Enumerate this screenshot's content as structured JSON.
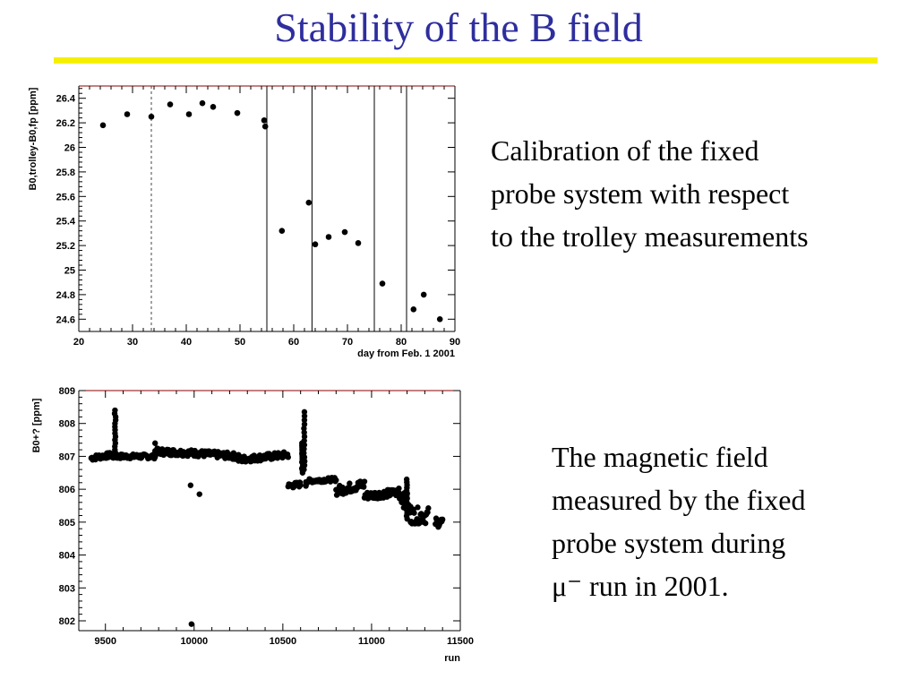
{
  "slide": {
    "title": "Stability of the B field",
    "caption1_lines": [
      "Calibration of the fixed",
      "probe system with respect",
      "to the trolley measurements"
    ],
    "caption2_lines": [
      "The magnetic field",
      "measured by the fixed",
      "probe system during",
      "μ⁻ run in 2001."
    ]
  },
  "colors": {
    "title": "#2e2e9e",
    "rule": "#f5f000",
    "frame_top": "#8b0000"
  },
  "chart_data": [
    {
      "type": "scatter",
      "xlabel": "day from Feb. 1 2001",
      "ylabel": "B0,trolley-B0,fp [ppm]",
      "xlim": [
        20,
        90
      ],
      "ylim": [
        24.5,
        26.5
      ],
      "xticks": [
        20,
        30,
        40,
        50,
        60,
        70,
        80,
        90
      ],
      "yticks": [
        24.6,
        24.8,
        25,
        25.2,
        25.4,
        25.6,
        25.8,
        26,
        26.2,
        26.4
      ],
      "vlines_solid": [
        55,
        63.4,
        75,
        81
      ],
      "vlines_dashed": [
        33.5
      ],
      "points": [
        [
          24.5,
          26.18
        ],
        [
          29,
          26.27
        ],
        [
          33.5,
          26.25
        ],
        [
          37,
          26.35
        ],
        [
          40.5,
          26.27
        ],
        [
          43,
          26.36
        ],
        [
          45,
          26.33
        ],
        [
          49.5,
          26.28
        ],
        [
          54.5,
          26.22
        ],
        [
          54.7,
          26.17
        ],
        [
          57.8,
          25.32
        ],
        [
          62.8,
          25.55
        ],
        [
          64,
          25.21
        ],
        [
          66.5,
          25.27
        ],
        [
          69.5,
          25.31
        ],
        [
          72,
          25.22
        ],
        [
          76.5,
          24.89
        ],
        [
          82.3,
          24.68
        ],
        [
          84.2,
          24.8
        ],
        [
          87.2,
          24.6
        ]
      ]
    },
    {
      "type": "scatter",
      "xlabel": "run",
      "ylabel": "B0+? [ppm]",
      "xlim": [
        9350,
        11500
      ],
      "ylim": [
        801.7,
        809
      ],
      "xticks": [
        9500,
        10000,
        10500,
        11000,
        11500
      ],
      "yticks": [
        802,
        803,
        804,
        805,
        806,
        807,
        808,
        809
      ],
      "segments": [
        {
          "x0": 9420,
          "x1": 9540,
          "y0": 806.95,
          "y1": 807.05,
          "jitter": 0.08
        },
        {
          "x0": 9540,
          "x1": 9780,
          "y0": 807.0,
          "y1": 807.0,
          "jitter": 0.07
        },
        {
          "x0": 9780,
          "x1": 10000,
          "y0": 807.15,
          "y1": 807.1,
          "jitter": 0.1
        },
        {
          "x0": 10000,
          "x1": 10250,
          "y0": 807.1,
          "y1": 807.0,
          "jitter": 0.1
        },
        {
          "x0": 10250,
          "x1": 10530,
          "y0": 806.9,
          "y1": 807.05,
          "jitter": 0.1
        },
        {
          "x0": 10530,
          "x1": 10600,
          "y0": 806.1,
          "y1": 806.15,
          "jitter": 0.08
        },
        {
          "x0": 10630,
          "x1": 10800,
          "y0": 806.25,
          "y1": 806.3,
          "jitter": 0.06
        },
        {
          "x0": 10800,
          "x1": 10960,
          "y0": 805.95,
          "y1": 806.15,
          "jitter": 0.15
        },
        {
          "x0": 10960,
          "x1": 11150,
          "y0": 805.8,
          "y1": 805.9,
          "jitter": 0.12
        },
        {
          "x0": 11150,
          "x1": 11220,
          "y0": 806.0,
          "y1": 805.3,
          "jitter": 0.25
        },
        {
          "x0": 11220,
          "x1": 11320,
          "y0": 805.2,
          "y1": 805.2,
          "jitter": 0.25
        },
        {
          "x0": 11360,
          "x1": 11400,
          "y0": 805.0,
          "y1": 805.0,
          "jitter": 0.15
        }
      ],
      "spikes": [
        {
          "x": 9555,
          "y0": 807.0,
          "y1": 808.4
        },
        {
          "x": 10620,
          "y0": 806.6,
          "y1": 808.35
        },
        {
          "x": 10610,
          "y0": 806.5,
          "y1": 807.4
        },
        {
          "x": 11200,
          "y0": 806.3,
          "y1": 805.1
        }
      ],
      "outliers": [
        [
          9980,
          806.12
        ],
        [
          10030,
          805.85
        ],
        [
          9985,
          801.9
        ],
        [
          9780,
          807.4
        ],
        [
          10630,
          806.1
        ]
      ]
    }
  ]
}
